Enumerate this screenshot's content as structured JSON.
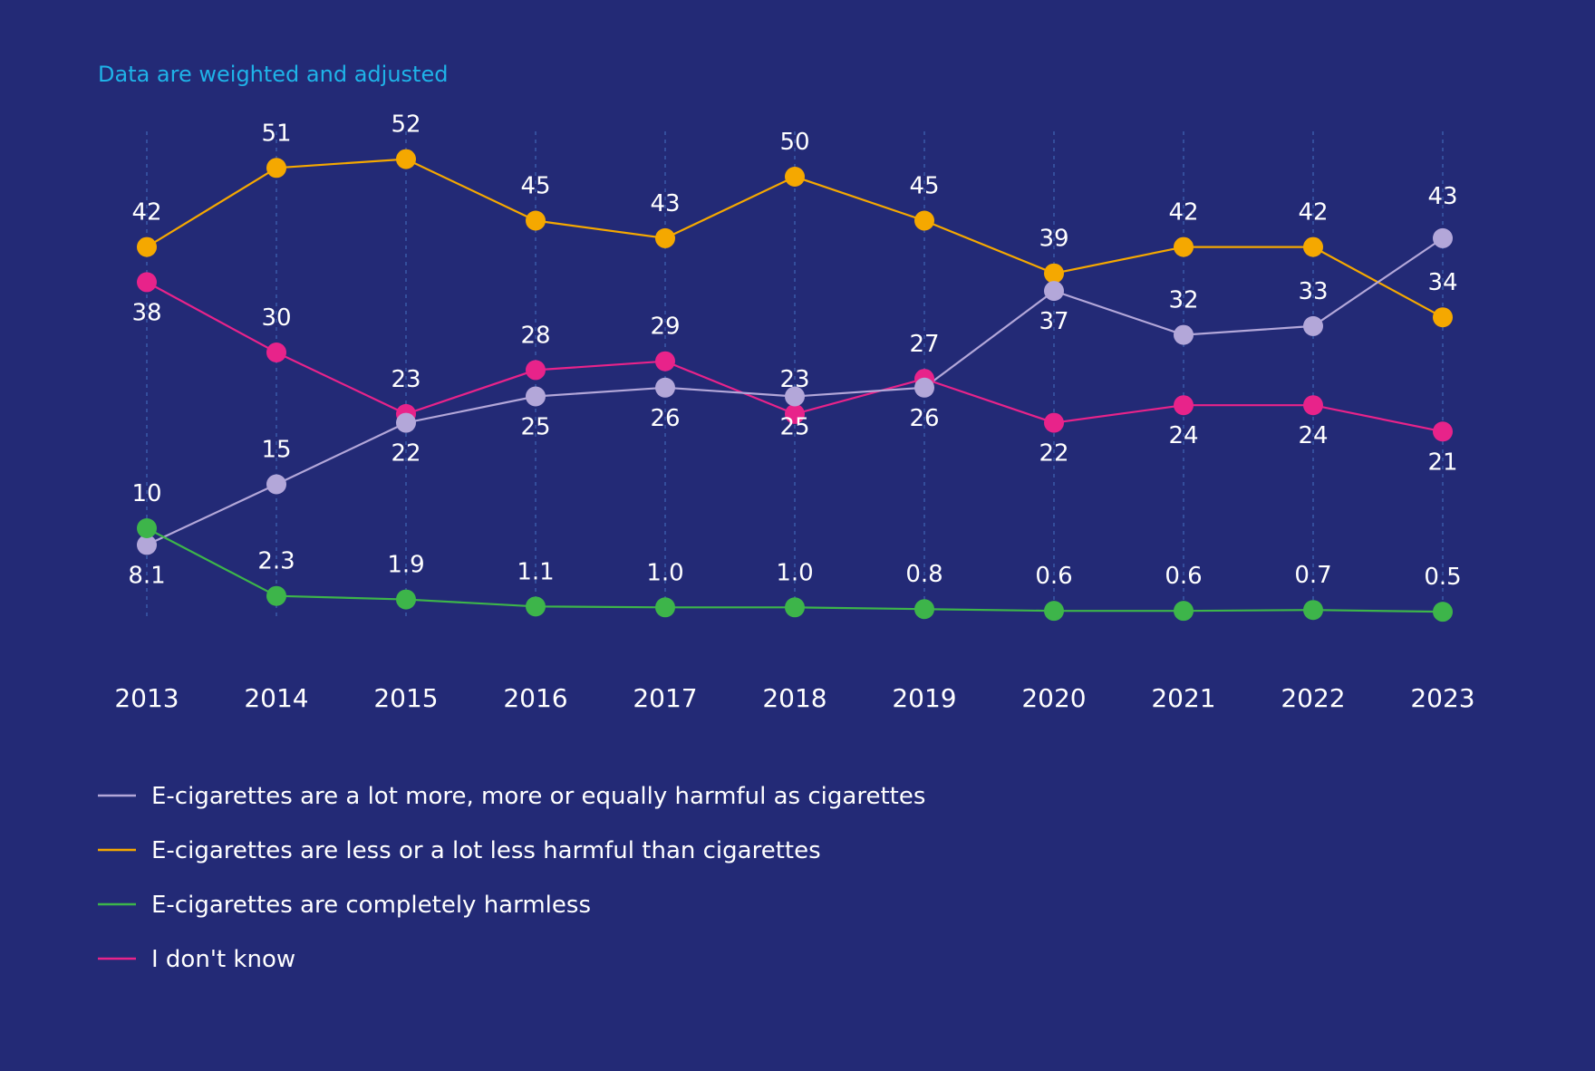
{
  "note": "Data are weighted and adjusted",
  "chart_data": {
    "type": "line",
    "x": [
      "2013",
      "2014",
      "2015",
      "2016",
      "2017",
      "2018",
      "2019",
      "2020",
      "2021",
      "2022",
      "2023"
    ],
    "ylim": [
      0,
      55
    ],
    "grid": "vertical-dashed",
    "legend_position": "bottom-left",
    "series": [
      {
        "key": "more",
        "name": "E-cigarettes are a lot more, more or equally harmful as cigarettes",
        "color": "#b3a7d9",
        "values": [
          8.1,
          15,
          22,
          25,
          26,
          25,
          26,
          37,
          32,
          33,
          43
        ],
        "labels": [
          "8.1",
          "15",
          "22",
          "25",
          "26",
          "25",
          "26",
          "37",
          "32",
          "33",
          "43"
        ]
      },
      {
        "key": "less",
        "name": "E-cigarettes are less or a lot less harmful than cigarettes",
        "color": "#f5a800",
        "values": [
          42,
          51,
          52,
          45,
          43,
          50,
          45,
          39,
          42,
          42,
          34
        ],
        "labels": [
          "42",
          "51",
          "52",
          "45",
          "43",
          "50",
          "45",
          "39",
          "42",
          "42",
          "34"
        ]
      },
      {
        "key": "harmless",
        "name": "E-cigarettes are completely harmless",
        "color": "#3db54a",
        "values": [
          10,
          2.3,
          1.9,
          1.1,
          1.0,
          1.0,
          0.8,
          0.6,
          0.6,
          0.7,
          0.5
        ],
        "labels": [
          "10",
          "2.3",
          "1.9",
          "1.1",
          "1.0",
          "1.0",
          "0.8",
          "0.6",
          "0.6",
          "0.7",
          "0.5"
        ]
      },
      {
        "key": "dontknow",
        "name": "I don't know",
        "color": "#e8238a",
        "values": [
          38,
          30,
          23,
          28,
          29,
          23,
          27,
          22,
          24,
          24,
          21
        ],
        "labels": [
          "38",
          "30",
          "23",
          "28",
          "29",
          "23",
          "27",
          "22",
          "24",
          "24",
          "21"
        ]
      }
    ]
  }
}
